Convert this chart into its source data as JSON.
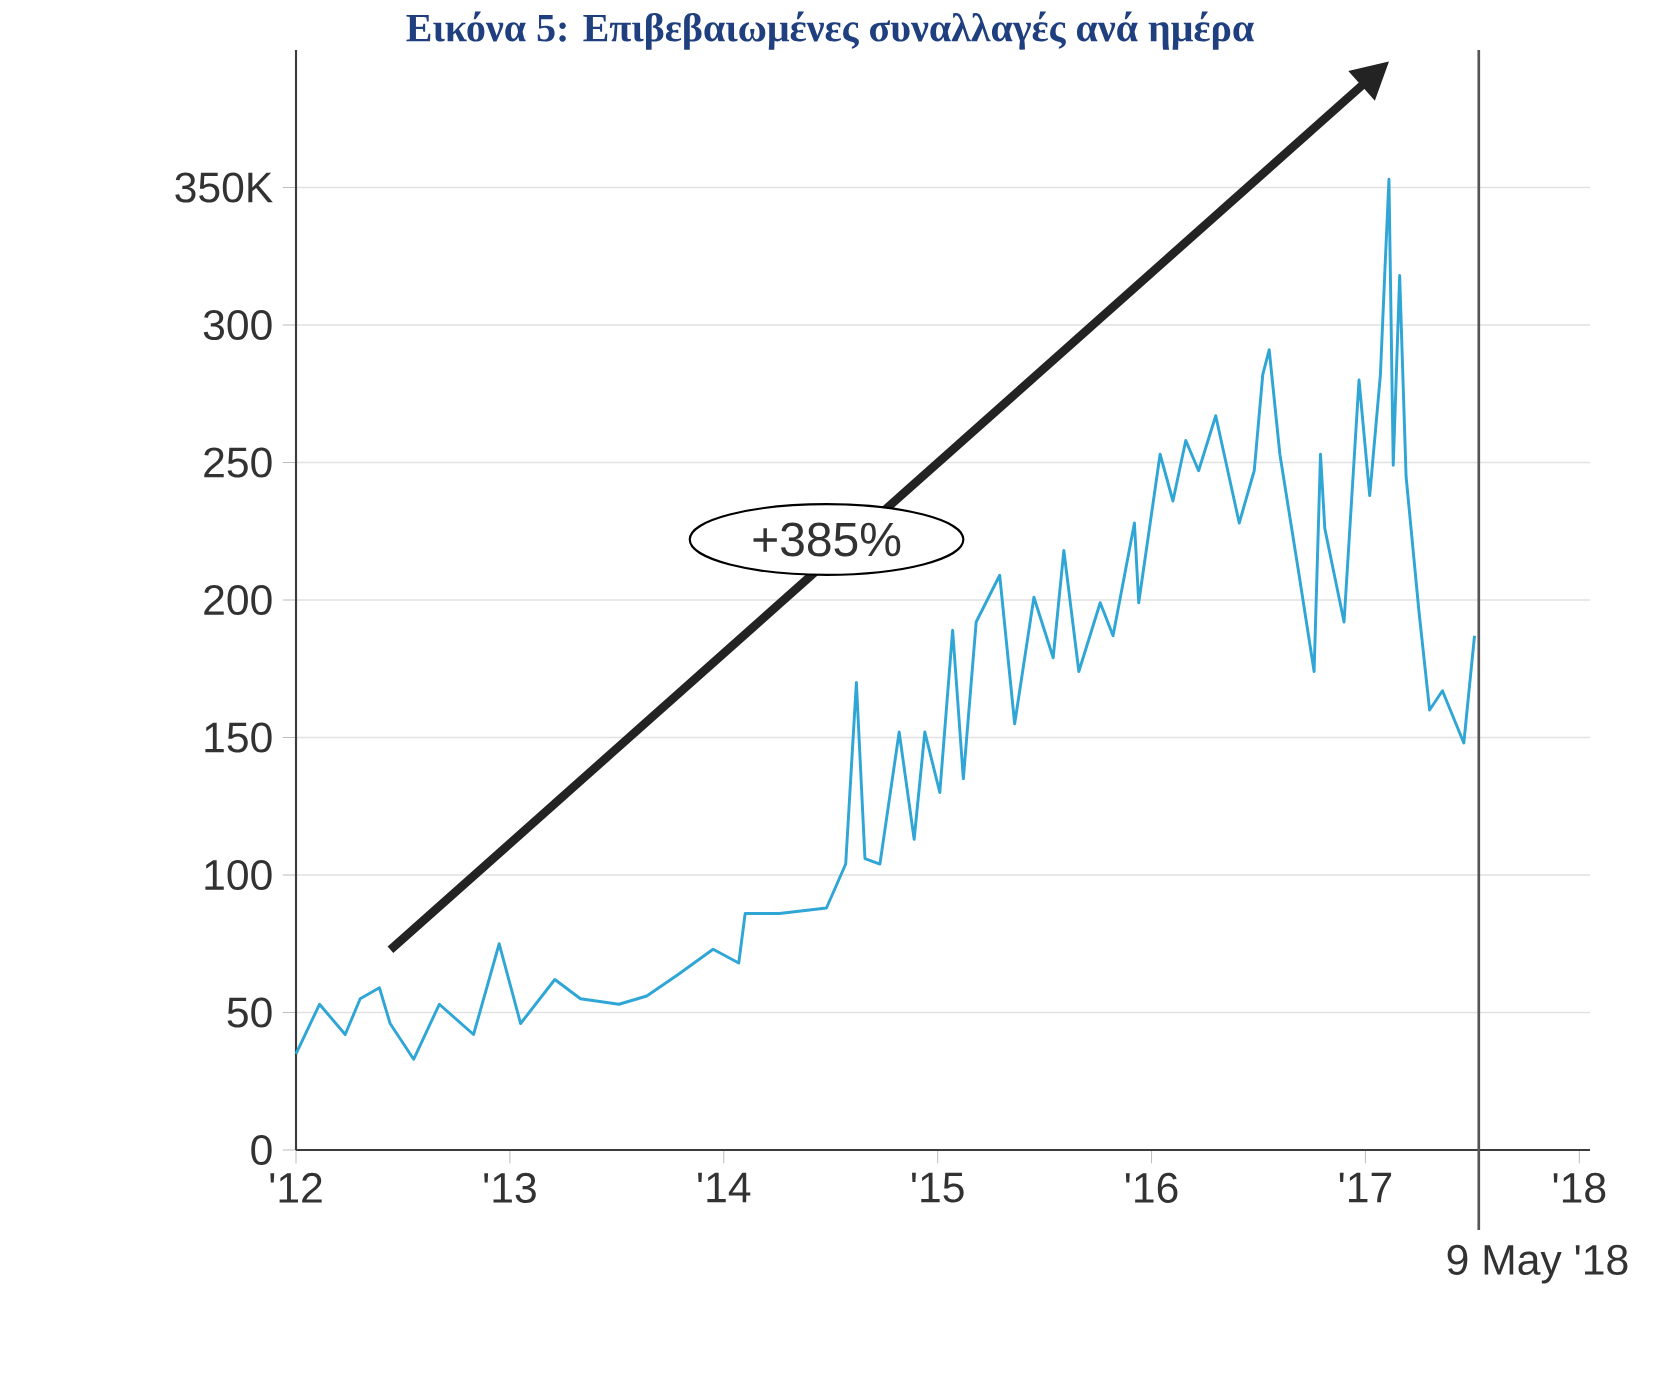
{
  "chart_data": {
    "type": "line",
    "title": "Εικόνα 5: Επιβεβαιωμένες συναλλαγές ανά ημέρα",
    "x": [
      2012.0,
      2012.11,
      2012.23,
      2012.3,
      2012.39,
      2012.44,
      2012.55,
      2012.67,
      2012.83,
      2012.95,
      2013.05,
      2013.21,
      2013.33,
      2013.51,
      2013.64,
      2013.79,
      2013.95,
      2014.07,
      2014.1,
      2014.26,
      2014.48,
      2014.57,
      2014.62,
      2014.66,
      2014.73,
      2014.82,
      2014.89,
      2014.94,
      2015.01,
      2015.07,
      2015.12,
      2015.18,
      2015.29,
      2015.36,
      2015.45,
      2015.54,
      2015.59,
      2015.66,
      2015.76,
      2015.82,
      2015.92,
      2015.94,
      2016.04,
      2016.1,
      2016.16,
      2016.22,
      2016.3,
      2016.41,
      2016.48,
      2016.52,
      2016.55,
      2016.6,
      2016.69,
      2016.76,
      2016.79,
      2016.81,
      2016.9,
      2016.97,
      2017.02,
      2017.07,
      2017.09,
      2017.11,
      2017.13,
      2017.16,
      2017.19,
      2017.25,
      2017.3,
      2017.36,
      2017.46,
      2017.51
    ],
    "series": [
      {
        "color": "#2fa6d6",
        "values": [
          35,
          53,
          42,
          55,
          59,
          46,
          33,
          53,
          42,
          75,
          46,
          62,
          55,
          53,
          56,
          64,
          73,
          68,
          86,
          86,
          88,
          104,
          170,
          106,
          104,
          152,
          113,
          152,
          130,
          189,
          135,
          192,
          209,
          155,
          201,
          179,
          218,
          174,
          199,
          187,
          228,
          199,
          253,
          236,
          258,
          247,
          267,
          228,
          247,
          282,
          291,
          253,
          209,
          174,
          253,
          226,
          192,
          280,
          238,
          282,
          318,
          353,
          249,
          318,
          245,
          196,
          160,
          167,
          148,
          187
        ]
      }
    ],
    "xlim": [
      2012,
      2018.05
    ],
    "ylim": [
      0,
      400
    ],
    "xticks": [
      {
        "value": 2012,
        "label": "'12"
      },
      {
        "value": 2013,
        "label": "'13"
      },
      {
        "value": 2014,
        "label": "'14"
      },
      {
        "value": 2015,
        "label": "'15"
      },
      {
        "value": 2016,
        "label": "'16"
      },
      {
        "value": 2017,
        "label": "'17"
      },
      {
        "value": 2018,
        "label": "'18"
      }
    ],
    "yticks": [
      0,
      50,
      100,
      150,
      200,
      250,
      300,
      {
        "value": 350,
        "label": "350K"
      }
    ],
    "grid": "y",
    "ref_lines": [
      {
        "axis": "x",
        "value": 2017.53,
        "label": "9 May '18",
        "color": "#555555"
      }
    ],
    "annotations": [
      "+385%"
    ]
  }
}
